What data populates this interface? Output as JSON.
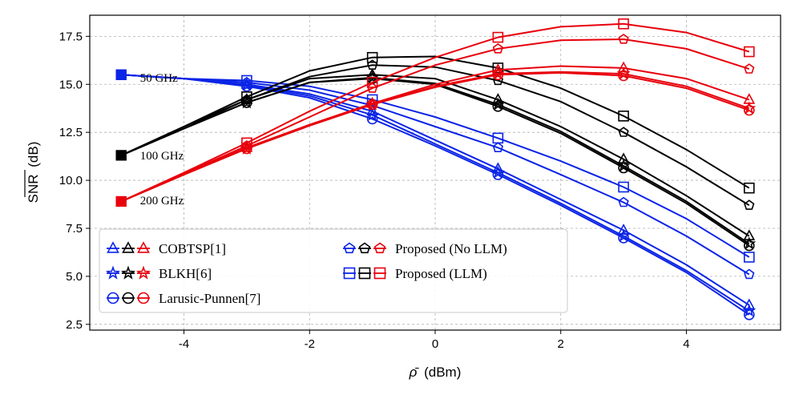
{
  "chart_data": {
    "type": "line",
    "xlabel_sym": "ρ̄",
    "xlabel_unit": "(dBm)",
    "ylabel_sym": "SNR",
    "ylabel_unit": "(dB)",
    "xlim": [
      -5.5,
      5.5
    ],
    "ylim": [
      2.2,
      18.6
    ],
    "xticks": [
      -4,
      -2,
      0,
      2,
      4
    ],
    "xtick_labels": [
      "-4",
      "-2",
      "0",
      "2",
      "4"
    ],
    "yticks": [
      2.5,
      5.0,
      7.5,
      10.0,
      12.5,
      15.0,
      17.5
    ],
    "ytick_labels": [
      "2.5",
      "5.0",
      "7.5",
      "10.0",
      "12.5",
      "15.0",
      "17.5"
    ],
    "grid": true,
    "x": [
      -5,
      -4,
      -3,
      -2,
      -1,
      0,
      1,
      2,
      3,
      4,
      5
    ],
    "colors": {
      "50 GHz": "#0b24e6",
      "100 GHz": "#000000",
      "200 GHz": "#e8000b"
    },
    "annotations": [
      {
        "text": "50 GHz",
        "x": -4.7,
        "y": 15.35
      },
      {
        "text": "100 GHz",
        "x": -4.7,
        "y": 11.3
      },
      {
        "text": "200 GHz",
        "x": -4.7,
        "y": 8.95
      }
    ],
    "series": [
      {
        "name": "COBTSP[1]",
        "spacing": "50 GHz",
        "marker": "triangle",
        "values": [
          15.5,
          15.3,
          15.0,
          14.5,
          13.6,
          12.1,
          10.6,
          9.0,
          7.4,
          5.6,
          3.5
        ]
      },
      {
        "name": "BLKH[6]",
        "spacing": "50 GHz",
        "marker": "star",
        "values": [
          15.5,
          15.3,
          14.95,
          14.4,
          13.4,
          11.9,
          10.4,
          8.8,
          7.1,
          5.3,
          3.2
        ]
      },
      {
        "name": "Larusic-Punnen[7]",
        "spacing": "50 GHz",
        "marker": "circle",
        "values": [
          15.5,
          15.3,
          14.9,
          14.3,
          13.2,
          11.8,
          10.3,
          8.7,
          7.0,
          5.2,
          3.0
        ]
      },
      {
        "name": "Proposed (No LLM)",
        "spacing": "50 GHz",
        "marker": "pentagon",
        "values": [
          15.5,
          15.3,
          15.1,
          14.7,
          13.9,
          12.8,
          11.7,
          10.3,
          8.85,
          7.1,
          5.1
        ]
      },
      {
        "name": "Proposed (LLM)",
        "spacing": "50 GHz",
        "marker": "square",
        "values": [
          15.5,
          15.3,
          15.2,
          14.9,
          14.2,
          13.3,
          12.2,
          11.0,
          9.65,
          8.0,
          6.0
        ]
      },
      {
        "name": "COBTSP[1]",
        "spacing": "100 GHz",
        "marker": "triangle",
        "values": [
          11.3,
          12.8,
          14.2,
          15.3,
          15.5,
          15.3,
          14.2,
          12.8,
          11.1,
          9.2,
          7.1
        ]
      },
      {
        "name": "BLKH[6]",
        "spacing": "100 GHz",
        "marker": "star",
        "values": [
          11.3,
          12.7,
          14.05,
          15.1,
          15.35,
          15.05,
          13.95,
          12.55,
          10.75,
          8.9,
          6.7
        ]
      },
      {
        "name": "Larusic-Punnen[7]",
        "spacing": "100 GHz",
        "marker": "circle",
        "values": [
          11.3,
          12.7,
          14.05,
          15.1,
          15.3,
          15.0,
          13.85,
          12.45,
          10.65,
          8.8,
          6.6
        ]
      },
      {
        "name": "Proposed (No LLM)",
        "spacing": "100 GHz",
        "marker": "pentagon",
        "values": [
          11.3,
          12.7,
          14.2,
          15.4,
          16.0,
          15.9,
          15.2,
          14.1,
          12.5,
          10.7,
          8.7
        ]
      },
      {
        "name": "Proposed (LLM)",
        "spacing": "100 GHz",
        "marker": "square",
        "values": [
          11.3,
          12.8,
          14.35,
          15.7,
          16.4,
          16.45,
          15.85,
          14.8,
          13.35,
          11.6,
          9.6
        ]
      },
      {
        "name": "COBTSP[1]",
        "spacing": "200 GHz",
        "marker": "triangle",
        "values": [
          8.9,
          10.3,
          11.7,
          12.9,
          14.0,
          15.0,
          15.75,
          15.95,
          15.85,
          15.3,
          14.2
        ]
      },
      {
        "name": "BLKH[6]",
        "spacing": "200 GHz",
        "marker": "star",
        "values": [
          8.9,
          10.3,
          11.65,
          12.85,
          13.95,
          14.9,
          15.55,
          15.65,
          15.55,
          14.9,
          13.75
        ]
      },
      {
        "name": "Larusic-Punnen[7]",
        "spacing": "200 GHz",
        "marker": "circle",
        "values": [
          8.9,
          10.3,
          11.65,
          12.85,
          13.95,
          14.85,
          15.5,
          15.6,
          15.45,
          14.8,
          13.65
        ]
      },
      {
        "name": "Proposed (No LLM)",
        "spacing": "200 GHz",
        "marker": "pentagon",
        "values": [
          8.9,
          10.35,
          11.8,
          13.3,
          14.8,
          16.0,
          16.85,
          17.3,
          17.35,
          16.85,
          15.8
        ]
      },
      {
        "name": "Proposed (LLM)",
        "spacing": "200 GHz",
        "marker": "square",
        "values": [
          8.9,
          10.4,
          11.95,
          13.6,
          15.1,
          16.4,
          17.45,
          18.0,
          18.15,
          17.7,
          16.7
        ]
      }
    ],
    "legend": {
      "location": "lower-left",
      "entries": [
        {
          "label": "COBTSP[1]",
          "marker": "triangle"
        },
        {
          "label": "Proposed (No LLM)",
          "marker": "pentagon"
        },
        {
          "label": "BLKH[6]",
          "marker": "star"
        },
        {
          "label": "Proposed (LLM)",
          "marker": "square"
        },
        {
          "label": "Larusic-Punnen[7]",
          "marker": "circle"
        }
      ]
    }
  }
}
